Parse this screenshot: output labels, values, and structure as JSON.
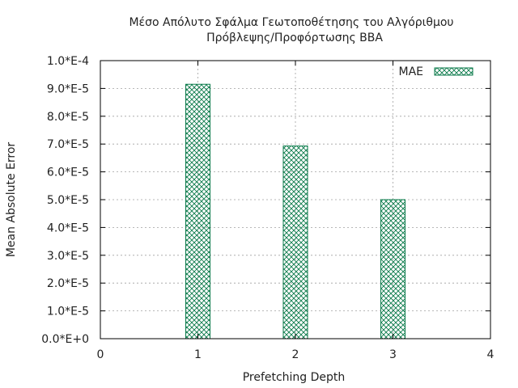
{
  "chart_data": {
    "type": "bar",
    "title_lines": [
      "Μέσο Απόλυτο Σφάλμα Γεωτοποθέτησης του Αλγόριθμου",
      "Πρόβλεψης/Προφόρτωσης BBA"
    ],
    "xlabel": "Prefetching Depth",
    "ylabel": "Mean Absolute Error",
    "xlim": [
      0,
      4
    ],
    "ylim": [
      0,
      0.0001
    ],
    "x_ticks": [
      0,
      1,
      2,
      3,
      4
    ],
    "x_tick_labels": [
      "0",
      "1",
      "2",
      "3",
      "4"
    ],
    "y_ticks": [
      0,
      1e-05,
      2e-05,
      3e-05,
      4e-05,
      5e-05,
      6e-05,
      7e-05,
      8e-05,
      9e-05,
      0.0001
    ],
    "y_tick_labels": [
      "0.0*E+0",
      "1.0*E-5",
      "2.0*E-5",
      "3.0*E-5",
      "4.0*E-5",
      "5.0*E-5",
      "6.0*E-5",
      "7.0*E-5",
      "8.0*E-5",
      "9.0*E-5",
      "1.0*E-4"
    ],
    "grid": true,
    "legend_position": "top-right",
    "bar_fill_pattern": "crosshatch",
    "bar_color": "#0a7a4a",
    "series": [
      {
        "name": "MAE",
        "x": [
          1,
          2,
          3
        ],
        "values": [
          9.15e-05,
          6.93e-05,
          5e-05
        ]
      }
    ]
  }
}
